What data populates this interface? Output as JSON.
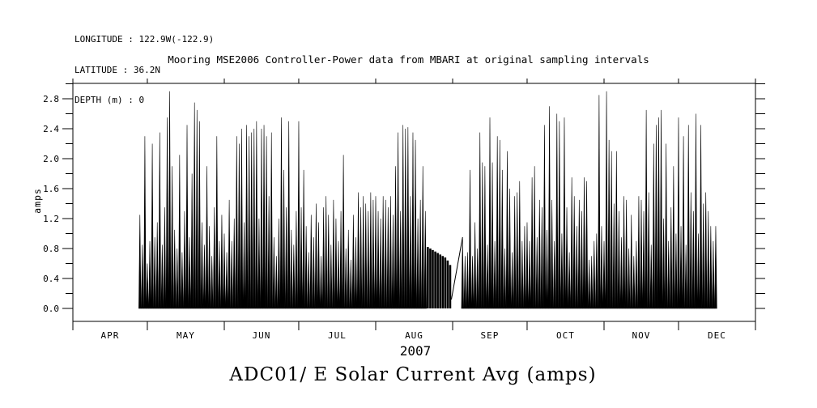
{
  "meta": {
    "longitude": "LONGITUDE : 122.9W(-122.9)",
    "latitude": "LATITUDE : 36.2N",
    "depth": "DEPTH (m) : 0"
  },
  "title": "Mooring MSE2006 Controller-Power data from MBARI at original sampling intervals",
  "caption": "ADC01/ E Solar Current Avg (amps)",
  "colors": {
    "foreground": "#000000",
    "background": "#ffffff"
  },
  "chart_data": {
    "type": "line",
    "title": "Mooring MSE2006 Controller-Power data from MBARI at original sampling intervals",
    "ylabel": "amps",
    "x_year_label": "2007",
    "x_months": [
      "APR",
      "MAY",
      "JUN",
      "JUL",
      "AUG",
      "SEP",
      "OCT",
      "NOV",
      "DEC"
    ],
    "month_boundaries_doy": [
      91,
      121,
      152,
      182,
      213,
      244,
      274,
      305,
      335,
      366
    ],
    "ylim": [
      -0.18,
      3.0
    ],
    "ytick_labels": [
      "0.0",
      "0.4",
      "0.8",
      "1.2",
      "1.6",
      "2.0",
      "2.4",
      "2.8"
    ],
    "ytick_major_values": [
      0.0,
      0.4,
      0.8,
      1.2,
      1.6,
      2.0,
      2.4,
      2.8
    ],
    "ytick_minor_step": 0.2,
    "grid": "off",
    "legend": "none",
    "x_start_doy": 118,
    "start_date": "2007-04-28",
    "end_date": "2007-12-16",
    "gap_connector": {
      "from_doy": 243.5,
      "from_value": 0.12,
      "to_doy": 248,
      "to_value": 0.95
    },
    "solid_day_indices": [
      116,
      117,
      118,
      119,
      120,
      121,
      122,
      123,
      124,
      125
    ],
    "series": [
      {
        "name": "Solar Current Avg (amps)",
        "daily_peaks": [
          1.25,
          0.85,
          2.3,
          0.6,
          0.9,
          2.2,
          0.95,
          1.15,
          2.35,
          0.85,
          1.35,
          2.55,
          2.9,
          1.9,
          1.05,
          0.8,
          2.05,
          0.75,
          1.3,
          2.45,
          0.95,
          1.8,
          2.75,
          2.65,
          2.5,
          1.15,
          0.85,
          1.9,
          1.1,
          0.7,
          1.35,
          2.3,
          0.9,
          1.25,
          1.0,
          0.75,
          1.45,
          0.9,
          1.2,
          2.3,
          2.2,
          2.4,
          1.15,
          2.45,
          2.3,
          2.35,
          2.4,
          2.5,
          1.2,
          2.4,
          2.45,
          2.3,
          1.5,
          2.35,
          0.95,
          0.7,
          1.2,
          2.55,
          1.85,
          1.35,
          2.5,
          1.05,
          0.85,
          1.3,
          2.5,
          1.35,
          1.85,
          1.1,
          0.75,
          1.25,
          0.95,
          1.4,
          1.15,
          0.7,
          1.35,
          1.5,
          1.25,
          0.85,
          1.45,
          1.2,
          0.9,
          1.3,
          2.05,
          0.8,
          1.05,
          0.65,
          1.25,
          0.95,
          1.55,
          1.35,
          1.5,
          1.4,
          1.3,
          1.55,
          1.45,
          1.5,
          1.3,
          1.2,
          1.5,
          1.45,
          1.35,
          1.5,
          1.25,
          1.9,
          2.35,
          1.3,
          2.45,
          2.4,
          2.42,
          1.5,
          2.35,
          2.25,
          1.2,
          1.45,
          1.9,
          1.3,
          0.82,
          0.8,
          0.78,
          0.76,
          0.74,
          0.72,
          0.7,
          0.68,
          0.64,
          0.58,
          null,
          null,
          null,
          null,
          0.95,
          0.7,
          0.75,
          1.85,
          0.7,
          1.15,
          0.8,
          2.35,
          1.95,
          1.9,
          0.85,
          2.55,
          1.95,
          0.9,
          2.3,
          2.25,
          1.85,
          0.8,
          2.1,
          1.6,
          0.75,
          1.5,
          1.55,
          1.7,
          0.9,
          1.1,
          1.15,
          0.9,
          1.75,
          1.9,
          0.95,
          1.45,
          1.35,
          2.45,
          1.05,
          2.7,
          1.45,
          0.9,
          2.6,
          2.5,
          1.0,
          2.55,
          1.35,
          0.75,
          1.75,
          1.5,
          1.1,
          1.45,
          1.3,
          1.75,
          1.7,
          0.65,
          0.7,
          0.9,
          1.0,
          2.85,
          1.1,
          0.9,
          2.9,
          2.25,
          2.1,
          1.4,
          2.1,
          1.3,
          0.95,
          1.5,
          1.45,
          0.8,
          1.25,
          0.7,
          0.9,
          1.5,
          1.45,
          1.3,
          2.65,
          1.55,
          0.85,
          2.2,
          2.45,
          2.55,
          2.65,
          1.2,
          2.2,
          0.9,
          1.35,
          1.9,
          1.0,
          2.55,
          1.1,
          2.3,
          0.85,
          2.45,
          1.55,
          1.3,
          2.6,
          1.0,
          2.45,
          1.4,
          1.55,
          1.3,
          1.1,
          0.9,
          1.1
        ]
      }
    ]
  }
}
